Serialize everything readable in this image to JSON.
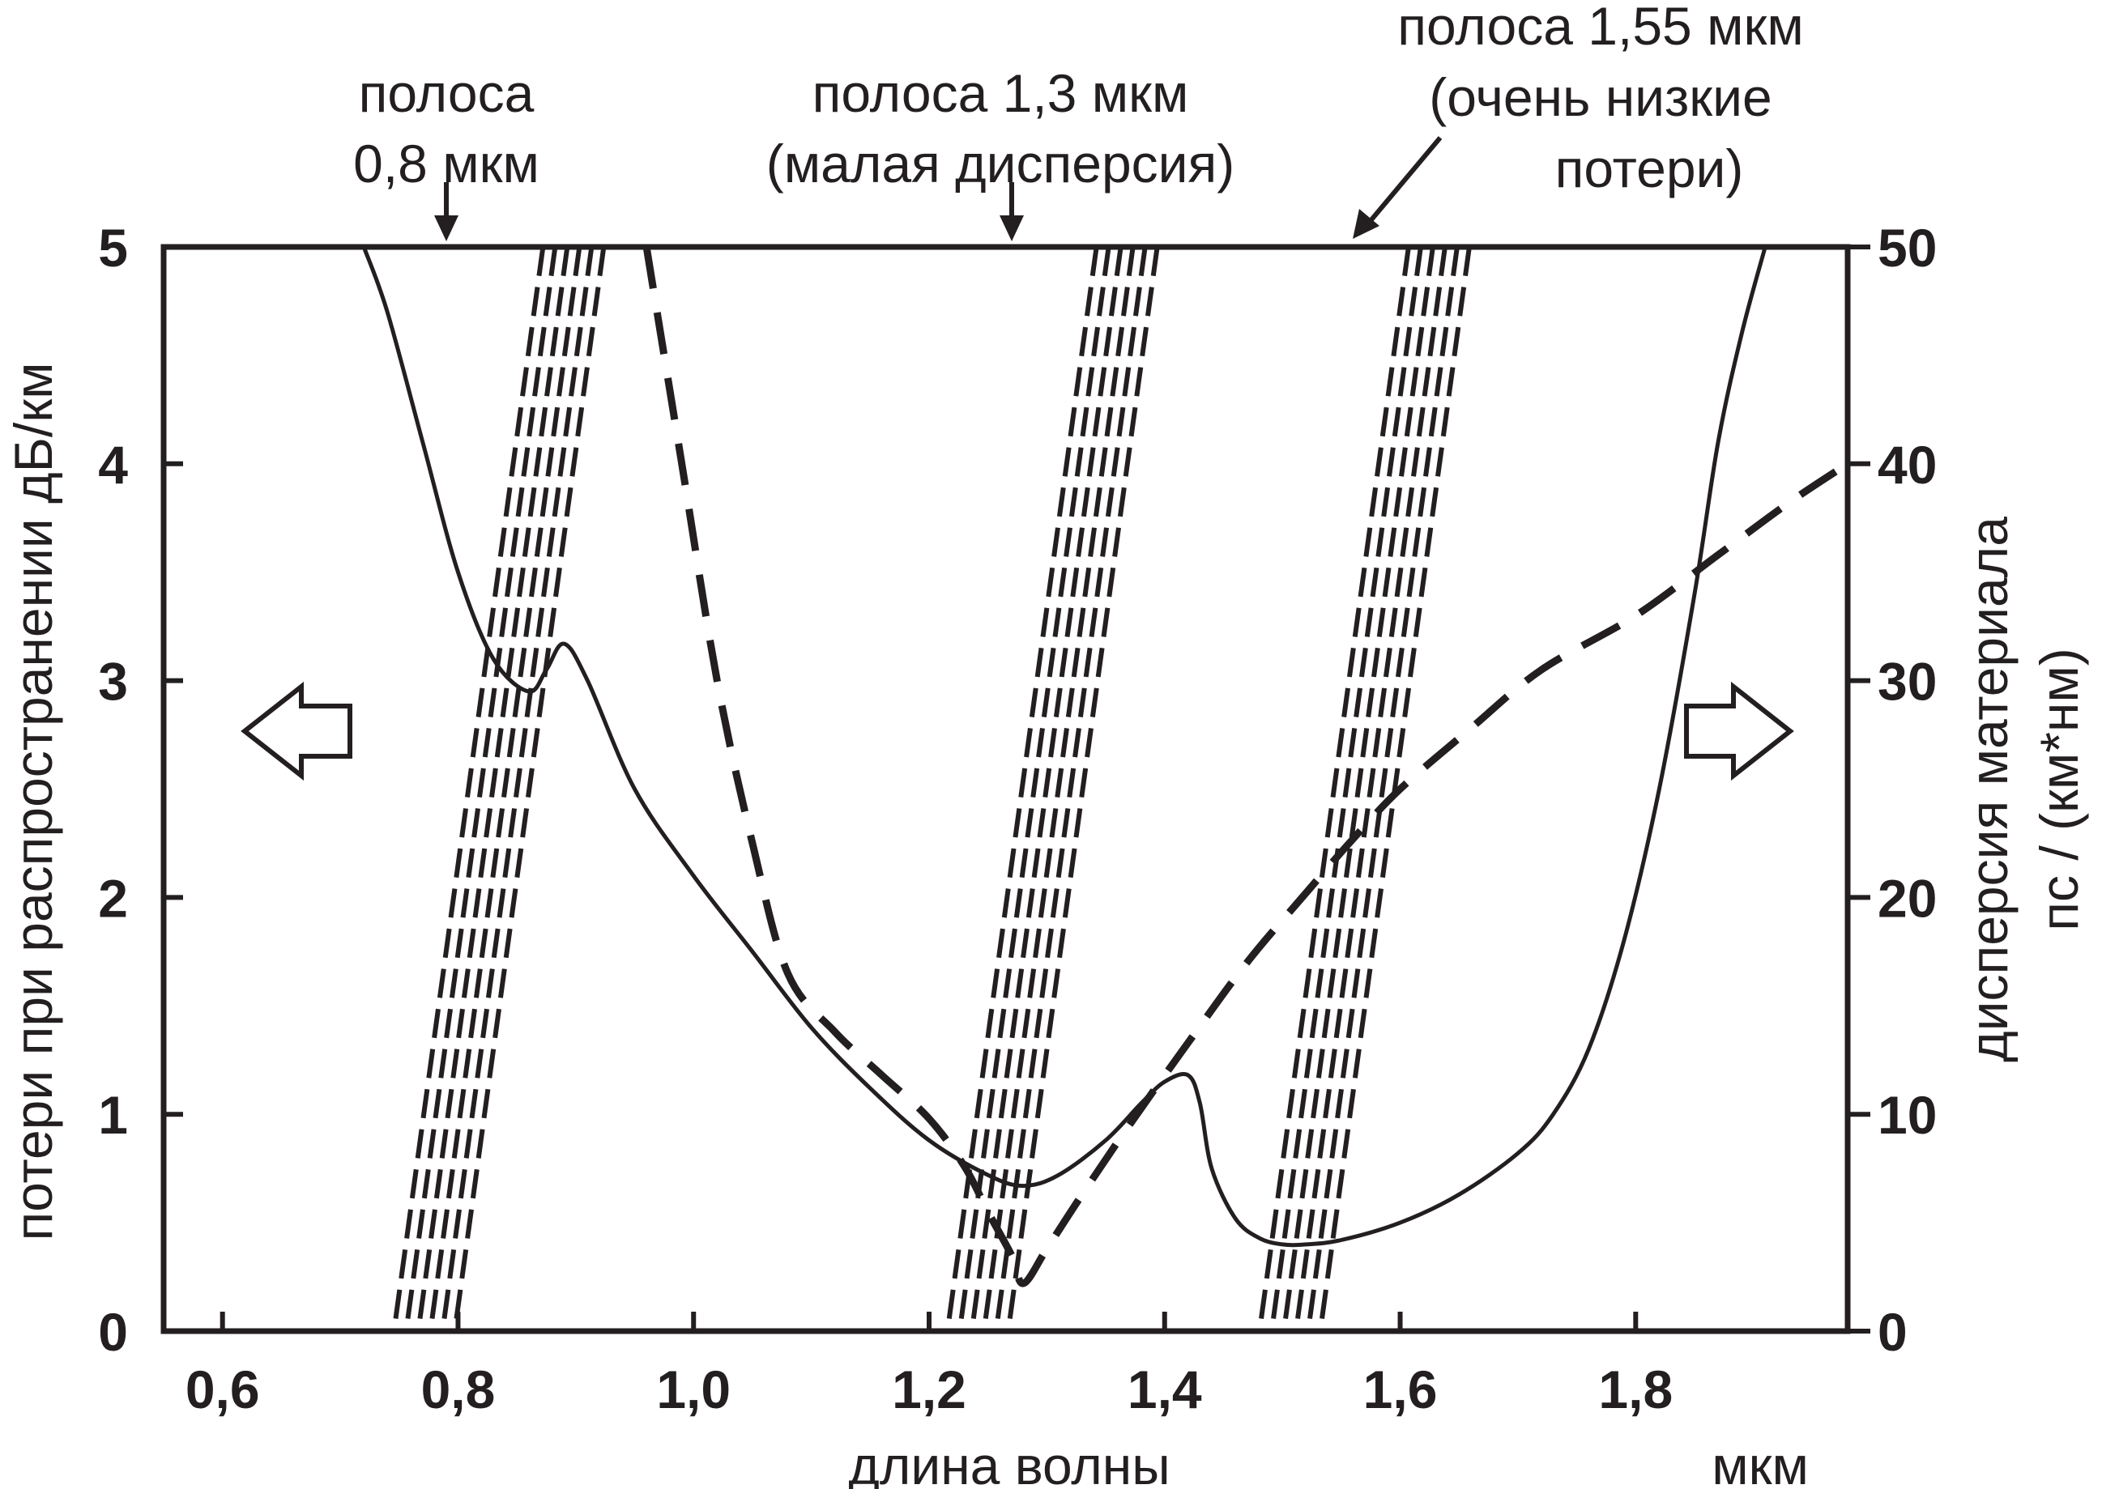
{
  "chart_data": {
    "type": "line",
    "xlabel": "длина волны",
    "xunit": "мкм",
    "ylabel_left": "потери при распространении дБ/км",
    "ylabel_right_line1": "дисперсия материала",
    "ylabel_right_line2": "пс / (км*нм)",
    "xlim": [
      0.55,
      1.98
    ],
    "ylim_left": [
      0,
      5
    ],
    "ylim_right": [
      0,
      50
    ],
    "grid": false,
    "x_ticks": [
      0.6,
      0.8,
      1.0,
      1.2,
      1.4,
      1.6,
      1.8
    ],
    "x_tick_labels": [
      "0,6",
      "0,8",
      "1,0",
      "1,2",
      "1,4",
      "1,6",
      "1,8"
    ],
    "y_left_ticks": [
      0,
      1,
      2,
      3,
      4,
      5
    ],
    "y_left_tick_labels": [
      "0",
      "1",
      "2",
      "3",
      "4",
      "5"
    ],
    "y_right_ticks": [
      0,
      10,
      20,
      30,
      40,
      50
    ],
    "y_right_tick_labels": [
      "0",
      "10",
      "20",
      "30",
      "40",
      "50"
    ],
    "series": [
      {
        "axis": "left",
        "style": "solid",
        "x": [
          0.72,
          0.74,
          0.77,
          0.8,
          0.83,
          0.86,
          0.875,
          0.89,
          0.91,
          0.95,
          1.0,
          1.05,
          1.1,
          1.15,
          1.2,
          1.25,
          1.28,
          1.31,
          1.35,
          1.38,
          1.4,
          1.42,
          1.43,
          1.44,
          1.46,
          1.48,
          1.5,
          1.52,
          1.55,
          1.6,
          1.65,
          1.7,
          1.73,
          1.76,
          1.79,
          1.82,
          1.85,
          1.87,
          1.89,
          1.91
        ],
        "y": [
          5.0,
          4.7,
          4.1,
          3.5,
          3.1,
          2.95,
          3.05,
          3.17,
          3.0,
          2.5,
          2.1,
          1.75,
          1.4,
          1.12,
          0.88,
          0.72,
          0.67,
          0.72,
          0.88,
          1.05,
          1.15,
          1.18,
          1.05,
          0.75,
          0.52,
          0.43,
          0.4,
          0.4,
          0.42,
          0.5,
          0.63,
          0.82,
          1.0,
          1.3,
          1.8,
          2.5,
          3.4,
          4.1,
          4.6,
          5.0
        ]
      },
      {
        "axis": "right",
        "style": "dashed",
        "x": [
          0.96,
          0.99,
          1.02,
          1.05,
          1.08,
          1.12,
          1.16,
          1.2,
          1.23,
          1.25,
          1.27,
          1.28,
          1.3,
          1.33,
          1.37,
          1.42,
          1.47,
          1.52,
          1.56,
          1.6,
          1.66,
          1.72,
          1.8,
          1.87,
          1.93,
          1.98
        ],
        "y": [
          50,
          40,
          30,
          22.5,
          16.5,
          13.8,
          11.8,
          9.8,
          7.6,
          5.5,
          3.5,
          2.2,
          3.8,
          6.3,
          9.5,
          13.3,
          17.0,
          20.2,
          22.7,
          25.0,
          27.8,
          30.5,
          33.0,
          35.8,
          38.2,
          40.0
        ]
      }
    ],
    "bands": [
      {
        "x_center": 0.835,
        "label_lines": [
          "полоса",
          "0,8 мкм"
        ]
      },
      {
        "x_center": 1.305,
        "label_lines": [
          "полоса 1,3 мкм",
          "(малая дисперсия)"
        ]
      },
      {
        "x_center": 1.57,
        "label_lines": [
          "полоса 1,55 мкм",
          "(очень низкие",
          "потери)"
        ]
      }
    ],
    "annotations": [
      {
        "type": "arrow-left",
        "meaning": "left axis"
      },
      {
        "type": "arrow-right",
        "meaning": "right axis"
      }
    ],
    "colors": {
      "ink": "#231f20",
      "background": "#ffffff"
    }
  }
}
